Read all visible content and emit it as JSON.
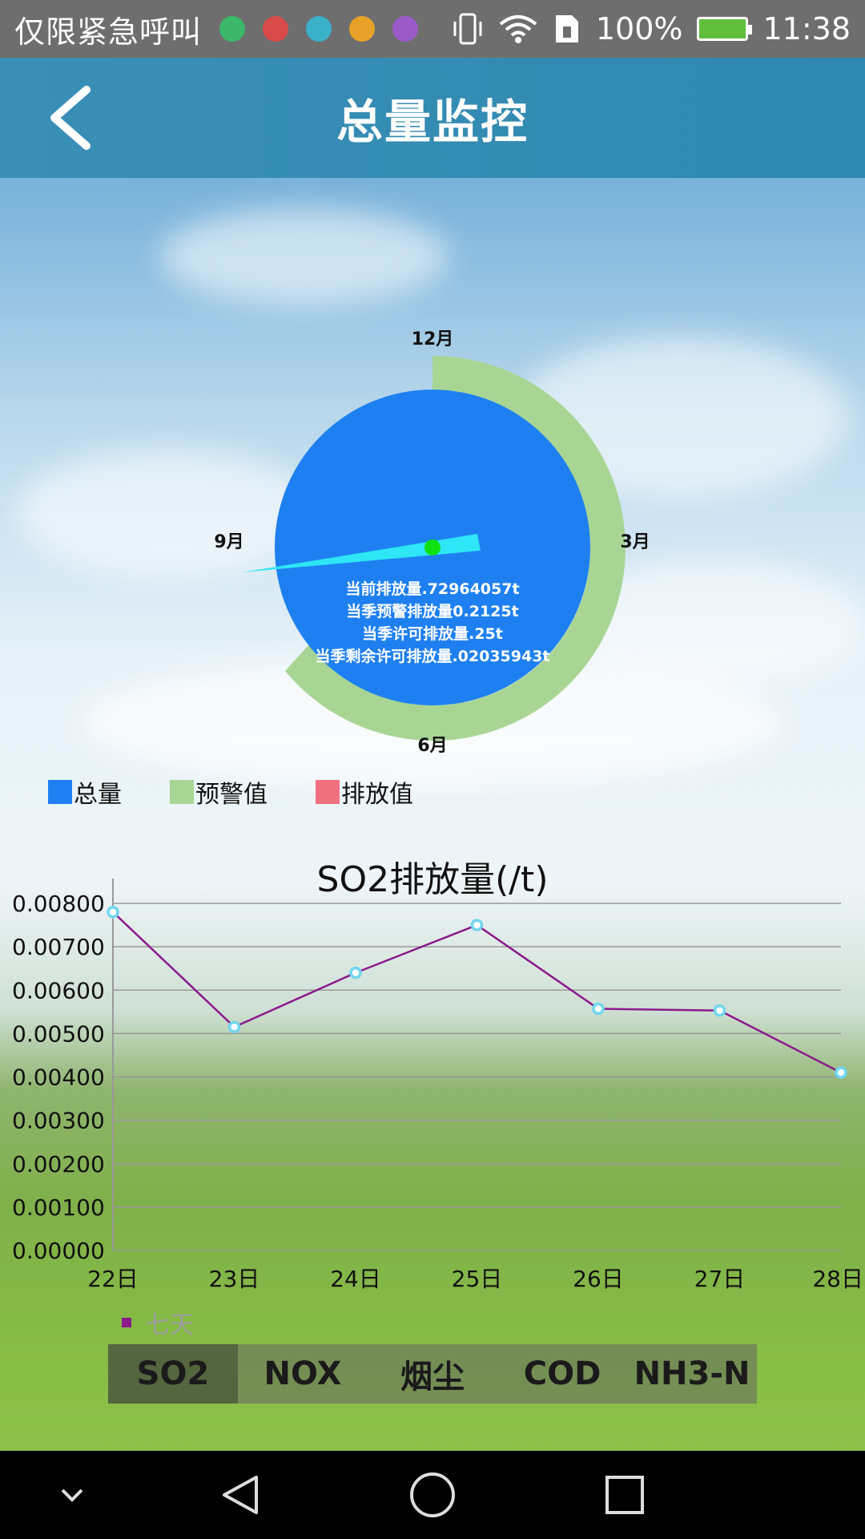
{
  "status_bar": {
    "carrier": "仅限紧急呼叫",
    "battery": "100%",
    "time": "11:38",
    "app_icon_colors": [
      "#3cb86a",
      "#d94a4a",
      "#3bb0c9",
      "#e8a22a",
      "#9a5ac8"
    ]
  },
  "header": {
    "title": "总量监控",
    "back_icon": "chevron-left-icon"
  },
  "gauge": {
    "month_labels": {
      "top": "12月",
      "right": "3月",
      "bottom": "6月",
      "left": "9月"
    },
    "info_lines": [
      "当前排放量.72964057t",
      "当季预警排放量0.2125t",
      "当季许可排放量.25t",
      "当季剩余许可排放量.02035943t"
    ],
    "colors": {
      "total": "#1e80f0",
      "warning": "#a8d594",
      "needle": "#2ee6f5",
      "center": "#10e010"
    }
  },
  "legend": [
    {
      "label": "总量",
      "color": "#1e80f0"
    },
    {
      "label": "预警值",
      "color": "#a8d594"
    },
    {
      "label": "排放值",
      "color": "#f07080"
    }
  ],
  "chart_data": {
    "type": "line",
    "title": "SO2排放量(/t)",
    "categories": [
      "22日",
      "23日",
      "24日",
      "25日",
      "26日",
      "27日",
      "28日"
    ],
    "series": [
      {
        "name": "七天",
        "values": [
          0.0078,
          0.00515,
          0.0064,
          0.0075,
          0.00557,
          0.00553,
          0.0041
        ],
        "color": "#8b1a8b"
      }
    ],
    "y_ticks": [
      "0.00800",
      "0.00700",
      "0.00600",
      "0.00500",
      "0.00400",
      "0.00300",
      "0.00200",
      "0.00100",
      "0.00000"
    ],
    "ylim": [
      0,
      0.008
    ],
    "grid": true,
    "legend_position": "bottom-left"
  },
  "tabs": [
    {
      "label": "SO2",
      "active": true
    },
    {
      "label": "NOX",
      "active": false
    },
    {
      "label": "烟尘",
      "active": false
    },
    {
      "label": "COD",
      "active": false
    },
    {
      "label": "NH3-N",
      "active": false
    }
  ],
  "nav_bar": {
    "icons": [
      "chevron-down-icon",
      "back-triangle-icon",
      "home-circle-icon",
      "recents-square-icon"
    ]
  }
}
